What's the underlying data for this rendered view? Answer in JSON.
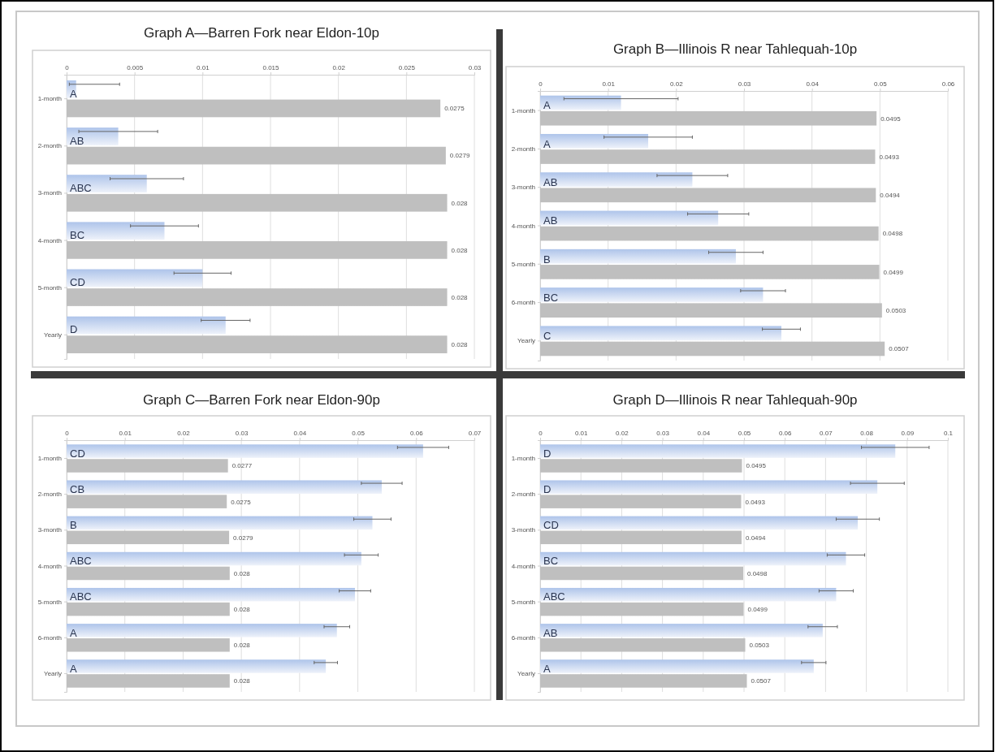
{
  "chart_data": [
    {
      "type": "bar",
      "orientation": "horizontal",
      "title": "Graph A—Barren Fork near Eldon-10p",
      "categories": [
        "1-month",
        "2-month",
        "3-month",
        "4-month",
        "5-month",
        "Yearly"
      ],
      "xlim": [
        0,
        0.03
      ],
      "xticks": [
        0,
        0.005,
        0.01,
        0.015,
        0.02,
        0.025,
        0.03
      ],
      "grid": "x",
      "series": [
        {
          "color": "#aec4ea",
          "values": [
            0.0007,
            0.0038,
            0.0059,
            0.0072,
            0.01,
            0.0117
          ],
          "errors": [
            [
              0.0002,
              0.0039
            ],
            0.0029,
            0.0027,
            0.0025,
            0.0021,
            0.0018
          ],
          "value_labels": [
            "A",
            "AB",
            "ABC",
            "BC",
            "CD",
            "D"
          ]
        },
        {
          "color": "#bfbfbf",
          "values": [
            0.0275,
            0.0279,
            0.028,
            0.028,
            0.028,
            0.028
          ],
          "value_labels": [
            "0.0275",
            "0.0279",
            "0.028",
            "0.028",
            "0.028",
            "0.028"
          ]
        }
      ]
    },
    {
      "type": "bar",
      "orientation": "horizontal",
      "title": "Graph B—Illinois  R near Tahlequah-10p",
      "categories": [
        "1-month",
        "2-month",
        "3-month",
        "4-month",
        "5-month",
        "6-month",
        "Yearly"
      ],
      "xlim": [
        0,
        0.06
      ],
      "xticks": [
        0,
        0.01,
        0.02,
        0.03,
        0.04,
        0.05,
        0.06
      ],
      "grid": "x",
      "series": [
        {
          "color": "#aec4ea",
          "values": [
            0.0119,
            0.0159,
            0.0224,
            0.0262,
            0.0288,
            0.0328,
            0.0355
          ],
          "errors": [
            0.0084,
            0.0065,
            0.0052,
            0.0045,
            0.004,
            0.0033,
            0.0028
          ],
          "value_labels": [
            "A",
            "A",
            "AB",
            "AB",
            "B",
            "BC",
            "C"
          ]
        },
        {
          "color": "#bfbfbf",
          "values": [
            0.0495,
            0.0493,
            0.0494,
            0.0498,
            0.0499,
            0.0503,
            0.0507
          ],
          "value_labels": [
            "0.0495",
            "0.0493",
            "0.0494",
            "0.0498",
            "0.0499",
            "0.0503",
            "0.0507"
          ]
        }
      ]
    },
    {
      "type": "bar",
      "orientation": "horizontal",
      "title": "Graph C—Barren Fork near Eldon-90p",
      "categories": [
        "1-month",
        "2-month",
        "3-month",
        "4-month",
        "5-month",
        "6-month",
        "Yearly"
      ],
      "xlim": [
        0,
        0.07
      ],
      "xticks": [
        0,
        0.01,
        0.02,
        0.03,
        0.04,
        0.05,
        0.06,
        0.07
      ],
      "grid": "x",
      "series": [
        {
          "color": "#aec4ea",
          "values": [
            0.0612,
            0.0541,
            0.0525,
            0.0506,
            0.0495,
            0.0464,
            0.0445
          ],
          "errors": [
            0.0044,
            0.0035,
            0.0032,
            0.0029,
            0.0027,
            0.0022,
            0.002
          ],
          "value_labels": [
            "CD",
            "CB",
            "B",
            "ABC",
            "ABC",
            "A",
            "A"
          ]
        },
        {
          "color": "#bfbfbf",
          "values": [
            0.0277,
            0.0275,
            0.0279,
            0.028,
            0.028,
            0.028,
            0.028
          ],
          "value_labels": [
            "0.0277",
            "0.0275",
            "0.0279",
            "0.028",
            "0.028",
            "0.028",
            "0.028"
          ]
        }
      ]
    },
    {
      "type": "bar",
      "orientation": "horizontal",
      "title": "Graph D—Illinois  R near Tahlequah-90p",
      "categories": [
        "1-month",
        "2-month",
        "3-month",
        "4-month",
        "5-month",
        "6-month",
        "Yearly"
      ],
      "xlim": [
        0,
        0.1
      ],
      "xticks": [
        0,
        0.01,
        0.02,
        0.03,
        0.04,
        0.05,
        0.06,
        0.07,
        0.08,
        0.09,
        0.1
      ],
      "grid": "x",
      "series": [
        {
          "color": "#aec4ea",
          "values": [
            0.0871,
            0.0827,
            0.0779,
            0.075,
            0.0726,
            0.0693,
            0.0671
          ],
          "errors": [
            0.0083,
            0.0066,
            0.0053,
            0.0046,
            0.0042,
            0.0036,
            0.003
          ],
          "value_labels": [
            "D",
            "D",
            "CD",
            "BC",
            "ABC",
            "AB",
            "A"
          ]
        },
        {
          "color": "#bfbfbf",
          "values": [
            0.0495,
            0.0493,
            0.0494,
            0.0498,
            0.0499,
            0.0503,
            0.0507
          ],
          "value_labels": [
            "0.0495",
            "0.0493",
            "0.0494",
            "0.0498",
            "0.0499",
            "0.0503",
            "0.0507"
          ]
        }
      ]
    }
  ]
}
